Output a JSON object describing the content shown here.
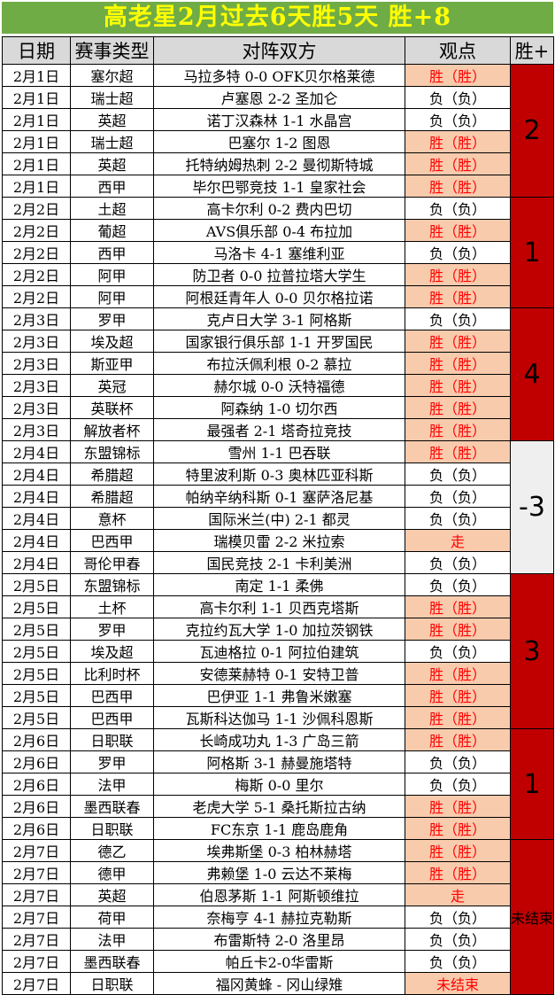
{
  "title": "高老星2月过去6天胜5天  胜+8",
  "columns": [
    "日期",
    "赛事类型",
    "对阵双方",
    "观点",
    "胜+"
  ],
  "colors": {
    "green": "#6FAC46",
    "yellow": "#FFFF00",
    "red-bg": "#C00000",
    "peach": "#F8CBAD",
    "red-text": "#FF0000",
    "header-gray": "#D9D9D9",
    "score-gray": "#EFEFEF"
  },
  "groups": [
    {
      "score": "2",
      "score_style": "red",
      "rows": [
        {
          "date": "2月1日",
          "league": "塞尔超",
          "match": "马拉多特 0-0 OFK贝尔格莱德",
          "view": "胜（胜）",
          "hl": true
        },
        {
          "date": "2月1日",
          "league": "瑞士超",
          "match": "卢塞恩 2-2 圣加仑",
          "view": "负（负）",
          "hl": false
        },
        {
          "date": "2月1日",
          "league": "英超",
          "match": "诺丁汉森林 1-1 水晶宫",
          "view": "负（负）",
          "hl": false
        },
        {
          "date": "2月1日",
          "league": "瑞士超",
          "match": "巴塞尔 1-2 图恩",
          "view": "胜（胜）",
          "hl": true
        },
        {
          "date": "2月1日",
          "league": "英超",
          "match": "托特纳姆热刺 2-2 曼彻斯特城",
          "view": "胜（胜）",
          "hl": true
        },
        {
          "date": "2月1日",
          "league": "西甲",
          "match": "毕尔巴鄂竞技 1-1 皇家社会",
          "view": "胜（胜）",
          "hl": true
        }
      ]
    },
    {
      "score": "1",
      "score_style": "red",
      "rows": [
        {
          "date": "2月2日",
          "league": "土超",
          "match": "高卡尔利 0-2 费内巴切",
          "view": "负（负）",
          "hl": false
        },
        {
          "date": "2月2日",
          "league": "葡超",
          "match": "AVS俱乐部 0-4 布拉加",
          "view": "胜（胜）",
          "hl": true
        },
        {
          "date": "2月2日",
          "league": "西甲",
          "match": "马洛卡 4-1 塞维利亚",
          "view": "负（负）",
          "hl": false
        },
        {
          "date": "2月2日",
          "league": "阿甲",
          "match": "防卫者 0-0 拉普拉塔大学生",
          "view": "胜（胜）",
          "hl": true
        },
        {
          "date": "2月2日",
          "league": "阿甲",
          "match": "阿根廷青年人 0-0 贝尔格拉诺",
          "view": "胜（胜）",
          "hl": true
        }
      ]
    },
    {
      "score": "4",
      "score_style": "red",
      "rows": [
        {
          "date": "2月3日",
          "league": "罗甲",
          "match": "克卢日大学 3-1 阿格斯",
          "view": "负（负）",
          "hl": false
        },
        {
          "date": "2月3日",
          "league": "埃及超",
          "match": "国家银行俱乐部 1-1 开罗国民",
          "view": "胜（胜）",
          "hl": true
        },
        {
          "date": "2月3日",
          "league": "斯亚甲",
          "match": "布拉沃佩利根 0-2 慕拉",
          "view": "胜（胜）",
          "hl": true
        },
        {
          "date": "2月3日",
          "league": "英冠",
          "match": "赫尔城 0-0 沃特福德",
          "view": "胜（胜）",
          "hl": true
        },
        {
          "date": "2月3日",
          "league": "英联杯",
          "match": "阿森纳 1-0 切尔西",
          "view": "胜（胜）",
          "hl": true
        },
        {
          "date": "2月3日",
          "league": "解放者杯",
          "match": "最强者 2-1 塔奇拉竞技",
          "view": "胜（胜）",
          "hl": true
        }
      ]
    },
    {
      "score": "-3",
      "score_style": "gray",
      "rows": [
        {
          "date": "2月4日",
          "league": "东盟锦标",
          "match": "雪州 1-1 巴吞联",
          "view": "胜（胜）",
          "hl": true
        },
        {
          "date": "2月4日",
          "league": "希腊超",
          "match": "特里波利斯 0-3 奥林匹亚科斯",
          "view": "负（负）",
          "hl": false
        },
        {
          "date": "2月4日",
          "league": "希腊超",
          "match": "帕纳辛纳科斯 0-1 塞萨洛尼基",
          "view": "负（负）",
          "hl": false
        },
        {
          "date": "2月4日",
          "league": "意杯",
          "match": "国际米兰(中) 2-1 都灵",
          "view": "负（负）",
          "hl": false
        },
        {
          "date": "2月4日",
          "league": "巴西甲",
          "match": "瑞模贝雷 2-2 米拉索",
          "view": "走",
          "hl": true
        },
        {
          "date": "2月4日",
          "league": "哥伦甲春",
          "match": "国民竞技 2-1 卡利美洲",
          "view": "负（负）",
          "hl": false
        }
      ]
    },
    {
      "score": "3",
      "score_style": "red",
      "rows": [
        {
          "date": "2月5日",
          "league": "东盟锦标",
          "match": "南定 1-1 柔佛",
          "view": "负（负）",
          "hl": false
        },
        {
          "date": "2月5日",
          "league": "土杯",
          "match": "高卡尔利 1-1 贝西克塔斯",
          "view": "胜（胜）",
          "hl": true
        },
        {
          "date": "2月5日",
          "league": "罗甲",
          "match": "克拉约瓦大学 1-0 加拉茨钢铁",
          "view": "胜（胜）",
          "hl": true
        },
        {
          "date": "2月5日",
          "league": "埃及超",
          "match": "瓦迪格拉 0-1 阿拉伯建筑",
          "view": "负（负）",
          "hl": false
        },
        {
          "date": "2月5日",
          "league": "比利时杯",
          "match": "安德莱赫特 0-1 安特卫普",
          "view": "胜（胜）",
          "hl": true
        },
        {
          "date": "2月5日",
          "league": "巴西甲",
          "match": "巴伊亚 1-1 弗鲁米嫩塞",
          "view": "胜（胜）",
          "hl": true
        },
        {
          "date": "2月5日",
          "league": "巴西甲",
          "match": "瓦斯科达伽马 1-1 沙佩科恩斯",
          "view": "胜（胜）",
          "hl": true
        }
      ]
    },
    {
      "score": "1",
      "score_style": "red",
      "rows": [
        {
          "date": "2月6日",
          "league": "日职联",
          "match": "长崎成功丸 1-3 广岛三箭",
          "view": "胜（胜）",
          "hl": true
        },
        {
          "date": "2月6日",
          "league": "罗甲",
          "match": "阿格斯 3-1 赫曼施塔特",
          "view": "负（负）",
          "hl": false
        },
        {
          "date": "2月6日",
          "league": "法甲",
          "match": "梅斯 0-0 里尔",
          "view": "负（负）",
          "hl": false
        },
        {
          "date": "2月6日",
          "league": "墨西联春",
          "match": "老虎大学 5-1 桑托斯拉古纳",
          "view": "胜（胜）",
          "hl": true
        },
        {
          "date": "2月6日",
          "league": "日职联",
          "match": "FC东京 1-1 鹿岛鹿角",
          "view": "胜（胜）",
          "hl": true
        }
      ]
    },
    {
      "score": "未结束",
      "score_style": "red",
      "score_small": true,
      "rows": [
        {
          "date": "2月7日",
          "league": "德乙",
          "match": "埃弗斯堡 0-3 柏林赫塔",
          "view": "胜（胜）",
          "hl": true
        },
        {
          "date": "2月7日",
          "league": "德甲",
          "match": "弗赖堡 1-0 云达不莱梅",
          "view": "胜（胜）",
          "hl": true
        },
        {
          "date": "2月7日",
          "league": "英超",
          "match": "伯恩茅斯 1-1 阿斯顿维拉",
          "view": "走",
          "hl": true
        },
        {
          "date": "2月7日",
          "league": "荷甲",
          "match": "奈梅亨 4-1 赫拉克勒斯",
          "view": "负（负）",
          "hl": false
        },
        {
          "date": "2月7日",
          "league": "法甲",
          "match": "布雷斯特 2-0 洛里昂",
          "view": "负（负）",
          "hl": false
        },
        {
          "date": "2月7日",
          "league": "墨西联春",
          "match": "帕丘卡2-0华雷斯",
          "view": "负（负）",
          "hl": false
        },
        {
          "date": "2月7日",
          "league": "日职联",
          "match": "福冈黄蜂 - 冈山绿雉",
          "view": "未结束",
          "hl": true
        }
      ]
    }
  ]
}
